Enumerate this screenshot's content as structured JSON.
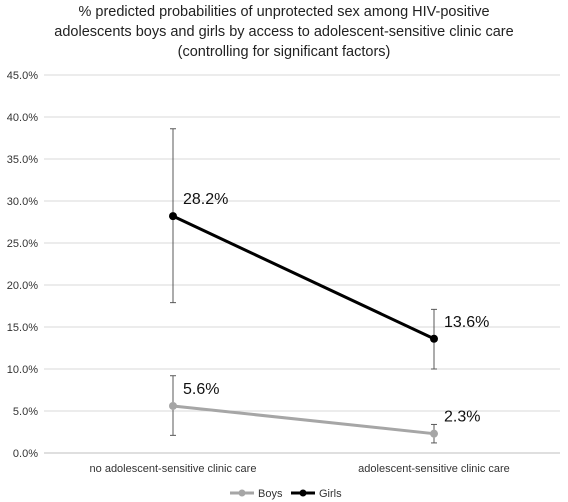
{
  "chart_data": {
    "type": "line",
    "title_lines": [
      "% predicted probabilities of unprotected sex among HIV-positive",
      "adolescents boys and girls by access to adolescent-sensitive clinic care",
      "(controlling for significant factors)"
    ],
    "categories": [
      "no adolescent-sensitive clinic care",
      "adolescent-sensitive clinic care"
    ],
    "ylim": [
      0,
      45
    ],
    "yticks": [
      0,
      5,
      10,
      15,
      20,
      25,
      30,
      35,
      40,
      45
    ],
    "ytick_labels": [
      "0.0%",
      "5.0%",
      "10.0%",
      "15.0%",
      "20.0%",
      "25.0%",
      "30.0%",
      "35.0%",
      "40.0%",
      "45.0%"
    ],
    "grid": "horizontal",
    "legend_position": "bottom",
    "series": [
      {
        "name": "Boys",
        "color": "#a6a6a6",
        "values": [
          5.6,
          2.3
        ],
        "labels": [
          "5.6%",
          "2.3%"
        ],
        "err_low": [
          2.1,
          1.2
        ],
        "err_high": [
          9.2,
          3.4
        ]
      },
      {
        "name": "Girls",
        "color": "#000000",
        "values": [
          28.2,
          13.6
        ],
        "labels": [
          "28.2%",
          "13.6%"
        ],
        "err_low": [
          17.9,
          10.0
        ],
        "err_high": [
          38.6,
          17.1
        ]
      }
    ]
  }
}
